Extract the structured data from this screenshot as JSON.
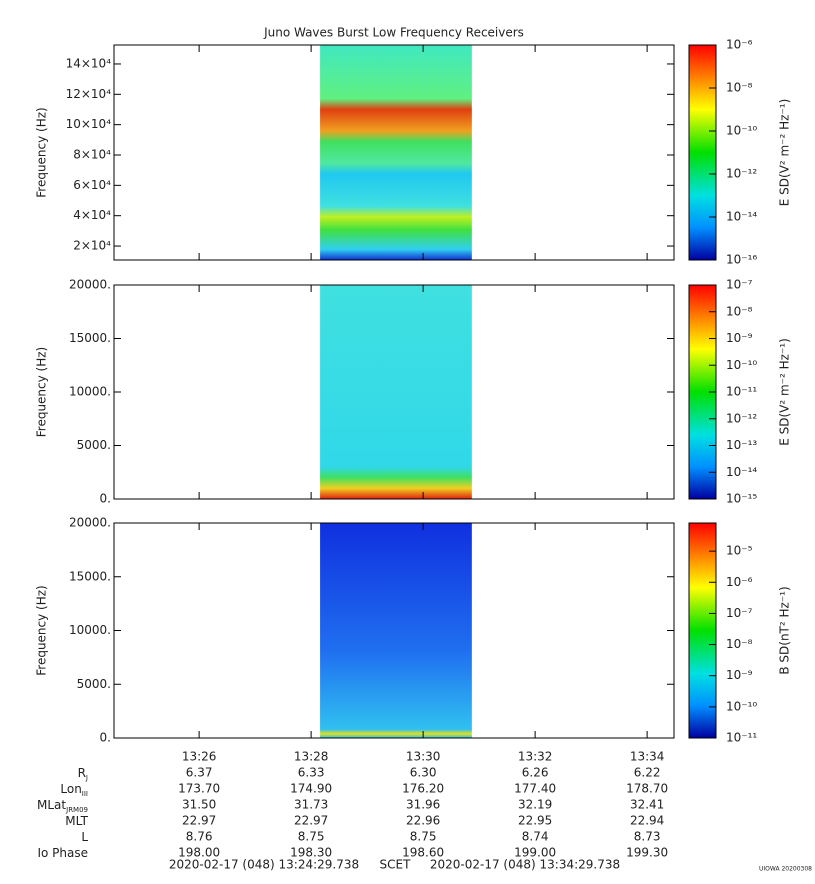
{
  "title": "Juno Waves Burst Low Frequency Receivers",
  "chart_data": [
    {
      "type": "spectrogram",
      "ylabel": "Frequency (Hz)",
      "ylim": [
        10800,
        152500
      ],
      "yticks": [
        {
          "value": 20000,
          "label": "2×10⁴"
        },
        {
          "value": 40000,
          "label": "4×10⁴"
        },
        {
          "value": 60000,
          "label": "6×10⁴"
        },
        {
          "value": 80000,
          "label": "8×10⁴"
        },
        {
          "value": 100000,
          "label": "10×10⁴"
        },
        {
          "value": 120000,
          "label": "12×10⁴"
        },
        {
          "value": 140000,
          "label": "14×10⁴"
        }
      ],
      "data_span": [
        28.16,
        30.87
      ],
      "zlabel": "E SD(V² m⁻² Hz⁻¹)",
      "zscale": "log",
      "zlim": [
        1e-16,
        1e-06
      ],
      "zticks": [
        {
          "value": 1e-06,
          "label": "10⁻⁶"
        },
        {
          "value": 1e-08,
          "label": "10⁻⁸"
        },
        {
          "value": 1e-10,
          "label": "10⁻¹⁰"
        },
        {
          "value": 1e-12,
          "label": "10⁻¹²"
        },
        {
          "value": 1e-14,
          "label": "10⁻¹⁴"
        },
        {
          "value": 1e-16,
          "label": "10⁻¹⁶"
        }
      ]
    },
    {
      "type": "spectrogram",
      "ylabel": "Frequency (Hz)",
      "ylim": [
        0,
        20000
      ],
      "yticks": [
        {
          "value": 0,
          "label": "0."
        },
        {
          "value": 5000,
          "label": "5000."
        },
        {
          "value": 10000,
          "label": "10000."
        },
        {
          "value": 15000,
          "label": "15000."
        },
        {
          "value": 20000,
          "label": "20000."
        }
      ],
      "data_span": [
        28.16,
        30.87
      ],
      "zlabel": "E SD(V² m⁻² Hz⁻¹)",
      "zscale": "log",
      "zlim": [
        1e-15,
        1e-07
      ],
      "zticks": [
        {
          "value": 1e-07,
          "label": "10⁻⁷"
        },
        {
          "value": 1e-08,
          "label": "10⁻⁸"
        },
        {
          "value": 1e-09,
          "label": "10⁻⁹"
        },
        {
          "value": 1e-10,
          "label": "10⁻¹⁰"
        },
        {
          "value": 1e-11,
          "label": "10⁻¹¹"
        },
        {
          "value": 1e-12,
          "label": "10⁻¹²"
        },
        {
          "value": 1e-13,
          "label": "10⁻¹³"
        },
        {
          "value": 1e-14,
          "label": "10⁻¹⁴"
        },
        {
          "value": 1e-15,
          "label": "10⁻¹⁵"
        }
      ]
    },
    {
      "type": "spectrogram",
      "ylabel": "Frequency (Hz)",
      "ylim": [
        0,
        20000
      ],
      "yticks": [
        {
          "value": 0,
          "label": "0."
        },
        {
          "value": 5000,
          "label": "5000."
        },
        {
          "value": 10000,
          "label": "10000."
        },
        {
          "value": 15000,
          "label": "15000."
        },
        {
          "value": 20000,
          "label": "20000."
        }
      ],
      "data_span": [
        28.16,
        30.87
      ],
      "xlim": [
        24.48,
        34.48
      ],
      "xticks": [
        {
          "value": 26,
          "label": "13:26"
        },
        {
          "value": 28,
          "label": "13:28"
        },
        {
          "value": 30,
          "label": "13:30"
        },
        {
          "value": 32,
          "label": "13:32"
        },
        {
          "value": 34,
          "label": "13:34"
        }
      ],
      "zlabel": "B SD(nT² Hz⁻¹)",
      "zscale": "log",
      "zlim": [
        1e-11,
        8e-05
      ],
      "zticks": [
        {
          "value": 1e-05,
          "label": "10⁻⁵"
        },
        {
          "value": 1e-06,
          "label": "10⁻⁶"
        },
        {
          "value": 1e-07,
          "label": "10⁻⁷"
        },
        {
          "value": 1e-08,
          "label": "10⁻⁸"
        },
        {
          "value": 1e-09,
          "label": "10⁻⁹"
        },
        {
          "value": 1e-10,
          "label": "10⁻¹⁰"
        },
        {
          "value": 1e-11,
          "label": "10⁻¹¹"
        }
      ]
    }
  ],
  "ephemeris": {
    "rows": [
      {
        "label": "R",
        "sub": "J",
        "values": [
          "6.37",
          "6.33",
          "6.30",
          "6.26",
          "6.22"
        ]
      },
      {
        "label": "Lon",
        "sub": "III",
        "values": [
          "173.70",
          "174.90",
          "176.20",
          "177.40",
          "178.70"
        ]
      },
      {
        "label": "MLat",
        "sub": "JRM09",
        "values": [
          "31.50",
          "31.73",
          "31.96",
          "32.19",
          "32.41"
        ]
      },
      {
        "label": "MLT",
        "values": [
          "22.97",
          "22.97",
          "22.96",
          "22.95",
          "22.94"
        ]
      },
      {
        "label": "L",
        "values": [
          "8.76",
          "8.75",
          "8.75",
          "8.74",
          "8.73"
        ]
      },
      {
        "label": "Io Phase",
        "values": [
          "198.00",
          "198.30",
          "198.60",
          "199.00",
          "199.30"
        ]
      }
    ]
  },
  "footer": {
    "start": "2020-02-17 (048) 13:24:29.738",
    "frame": "SCET",
    "end": "2020-02-17 (048) 13:34:29.738",
    "credit": "UIOWA 20200308"
  }
}
